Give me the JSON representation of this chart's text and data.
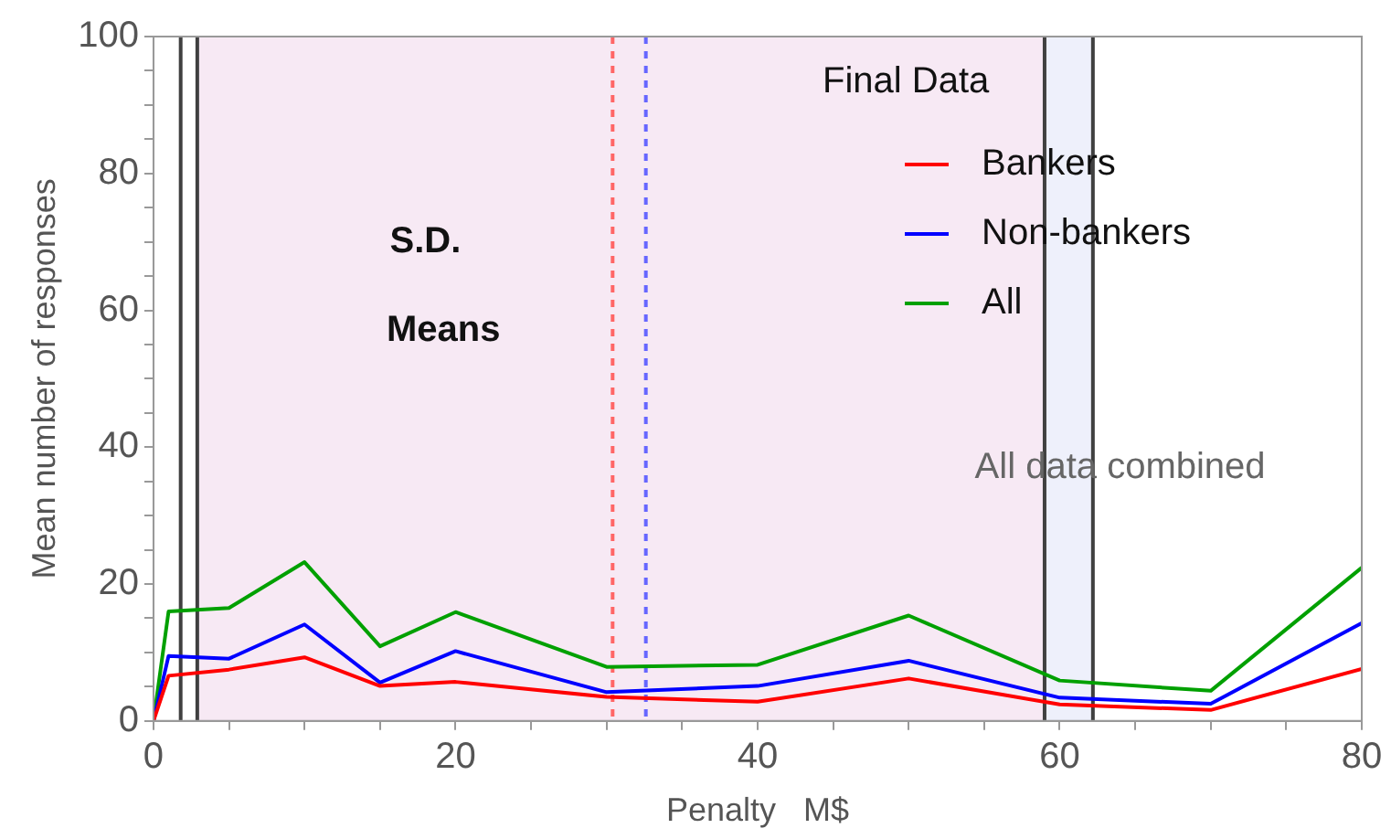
{
  "chart_data": {
    "type": "line",
    "xlabel": "Penalty   M$",
    "ylabel": "Mean number of responses",
    "legend_title": "Final Data",
    "x": [
      0,
      1,
      5,
      10,
      15,
      20,
      30,
      40,
      50,
      60,
      70,
      80
    ],
    "series": [
      {
        "name": "Bankers",
        "color": "#ff0000",
        "values": [
          0,
          6.6,
          7.5,
          9.3,
          5.1,
          5.7,
          3.5,
          2.8,
          6.2,
          2.4,
          1.6,
          7.6
        ]
      },
      {
        "name": "Non-bankers",
        "color": "#0000ff",
        "values": [
          0,
          9.5,
          9.1,
          14.1,
          5.6,
          10.2,
          4.2,
          5.1,
          8.8,
          3.4,
          2.5,
          14.3
        ]
      },
      {
        "name": "All",
        "color": "#00a000",
        "values": [
          0,
          16,
          16.5,
          23.2,
          10.9,
          15.9,
          7.9,
          8.2,
          15.4,
          5.9,
          4.4,
          22.4
        ]
      }
    ],
    "xlim": [
      0,
      80
    ],
    "ylim": [
      0,
      100
    ],
    "xticks": [
      0,
      {
        "value": 5,
        "label": null
      },
      {
        "value": 10,
        "label": null
      },
      {
        "value": 15,
        "label": null
      },
      20,
      {
        "value": 25,
        "label": null
      },
      {
        "value": 30,
        "label": null
      },
      {
        "value": 35,
        "label": null
      },
      40,
      {
        "value": 45,
        "label": null
      },
      {
        "value": 50,
        "label": null
      },
      {
        "value": 55,
        "label": null
      },
      60,
      {
        "value": 65,
        "label": null
      },
      {
        "value": 70,
        "label": null
      },
      {
        "value": 75,
        "label": null
      },
      80
    ],
    "yticks": [
      0,
      {
        "value": 5,
        "label": null
      },
      {
        "value": 10,
        "label": null
      },
      {
        "value": 15,
        "label": null
      },
      20,
      {
        "value": 25,
        "label": null
      },
      {
        "value": 30,
        "label": null
      },
      {
        "value": 35,
        "label": null
      },
      40,
      {
        "value": 45,
        "label": null
      },
      {
        "value": 50,
        "label": null
      },
      {
        "value": 55,
        "label": null
      },
      60,
      {
        "value": 65,
        "label": null
      },
      {
        "value": 70,
        "label": null
      },
      {
        "value": 75,
        "label": null
      },
      80,
      {
        "value": 85,
        "label": null
      },
      {
        "value": 90,
        "label": null
      },
      {
        "value": 95,
        "label": null
      },
      100
    ],
    "bands": [
      {
        "axis": "x",
        "from": 2.9,
        "to": 59,
        "color": "#f7e9f4"
      },
      {
        "axis": "x",
        "from": 59,
        "to": 62.2,
        "color": "#eef0fb"
      }
    ],
    "ref_lines": [
      {
        "axis": "x",
        "value": 1.8,
        "color": "#404040",
        "line_style": "solid"
      },
      {
        "axis": "x",
        "value": 2.9,
        "color": "#404040",
        "line_style": "solid"
      },
      {
        "axis": "x",
        "value": 30.4,
        "color": "#ff6666",
        "line_style": "dashed"
      },
      {
        "axis": "x",
        "value": 32.6,
        "color": "#6666ff",
        "line_style": "dashed"
      },
      {
        "axis": "x",
        "value": 59,
        "color": "#404040",
        "line_style": "solid"
      },
      {
        "axis": "x",
        "value": 62.2,
        "color": "#404040",
        "line_style": "solid"
      }
    ],
    "annotations": [
      "S.D.",
      "Means",
      "All data combined"
    ],
    "legend": "top right",
    "grid": false,
    "marker": "none",
    "line_style": "solid"
  }
}
